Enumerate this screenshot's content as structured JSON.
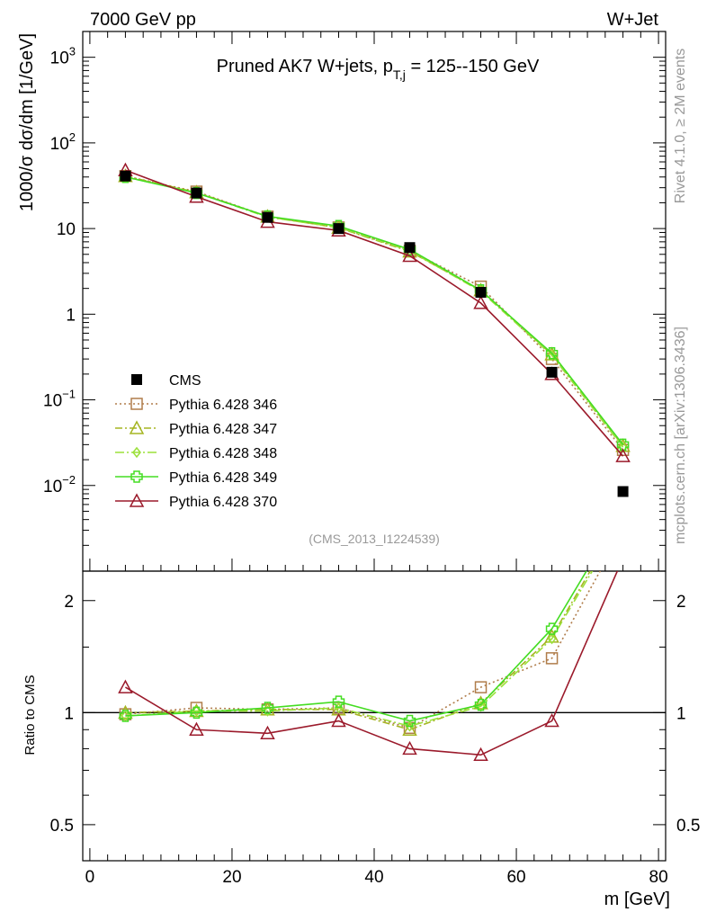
{
  "header": {
    "left": "7000 GeV pp",
    "right": "W+Jet"
  },
  "side": {
    "rivet": "Rivet 4.1.0, ≥ 2M events",
    "mcplots": "mcplots.cern.ch [arXiv:1306.3436]"
  },
  "chart_data": {
    "type": "line",
    "title_main": "Pruned AK7 W+jets, p",
    "title_sub": "T,j",
    "title_tail": " = 125--150 GeV",
    "analysis_id": "(CMS_2013_I1224539)",
    "xlabel": "m [GeV]",
    "ylabel": "1000/σ  dσ/dm [1/GeV]",
    "ratio_ylabel": "Ratio to CMS",
    "xlim": [
      -1,
      81
    ],
    "ylim_log": [
      0.001,
      2000
    ],
    "ratio_ylim": [
      0.4,
      2.4
    ],
    "x_ticks": [
      "0",
      "20",
      "40",
      "60",
      "80"
    ],
    "x_tick_values": [
      0,
      20,
      40,
      60,
      80
    ],
    "y_ticks": [
      {
        "v": 1000,
        "base": "10",
        "exp": "3"
      },
      {
        "v": 100,
        "base": "10",
        "exp": "2"
      },
      {
        "v": 10,
        "base": "10",
        "exp": ""
      },
      {
        "v": 1,
        "base": "1",
        "exp": ""
      },
      {
        "v": 0.1,
        "base": "10",
        "exp": "−1"
      },
      {
        "v": 0.01,
        "base": "10",
        "exp": "−2"
      }
    ],
    "ratio_ticks": [
      {
        "v": 0.5,
        "label": "0.5"
      },
      {
        "v": 1,
        "label": "1"
      },
      {
        "v": 2,
        "label": "2"
      }
    ],
    "x": [
      5,
      15,
      25,
      35,
      45,
      55,
      65,
      75
    ],
    "data": {
      "name": "CMS",
      "values": [
        41,
        26,
        13.5,
        10,
        6.0,
        1.8,
        0.21,
        0.0085
      ]
    },
    "series": [
      {
        "name": "Pythia 6.428 346",
        "color": "#b07d4b",
        "dash": "2,3",
        "marker": "square",
        "values": [
          41,
          27,
          13.8,
          10.3,
          5.5,
          2.1,
          0.3,
          0.026
        ],
        "ratio": [
          0.99,
          1.03,
          1.02,
          1.03,
          0.91,
          1.17,
          1.4,
          3.1
        ]
      },
      {
        "name": "Pythia 6.428 347",
        "color": "#a5b522",
        "dash": "8,3,2,3",
        "marker": "triangle",
        "values": [
          41,
          26.5,
          13.8,
          10.2,
          5.4,
          1.9,
          0.34,
          0.029
        ],
        "ratio": [
          1.0,
          1.01,
          1.02,
          1.02,
          0.9,
          1.06,
          1.6,
          3.4
        ]
      },
      {
        "name": "Pythia 6.428 348",
        "color": "#9be03a",
        "dash": "10,3,2,3",
        "marker": "diamond",
        "values": [
          40,
          26.3,
          13.6,
          10.3,
          5.5,
          1.85,
          0.33,
          0.028
        ],
        "ratio": [
          0.98,
          1.01,
          1.01,
          1.03,
          0.92,
          1.04,
          1.58,
          3.3
        ]
      },
      {
        "name": "Pythia 6.428 349",
        "color": "#44dd22",
        "dash": "",
        "marker": "cross",
        "values": [
          40,
          26,
          13.9,
          10.7,
          5.7,
          1.9,
          0.35,
          0.03
        ],
        "ratio": [
          0.98,
          1.0,
          1.03,
          1.07,
          0.95,
          1.05,
          1.68,
          3.5
        ]
      },
      {
        "name": "Pythia 6.428 370",
        "color": "#9b1a2b",
        "dash": "",
        "marker": "triangle",
        "values": [
          48,
          23.5,
          12,
          9.5,
          4.8,
          1.35,
          0.2,
          0.022
        ],
        "ratio": [
          1.17,
          0.9,
          0.88,
          0.95,
          0.8,
          0.77,
          0.95,
          2.6
        ]
      }
    ]
  }
}
